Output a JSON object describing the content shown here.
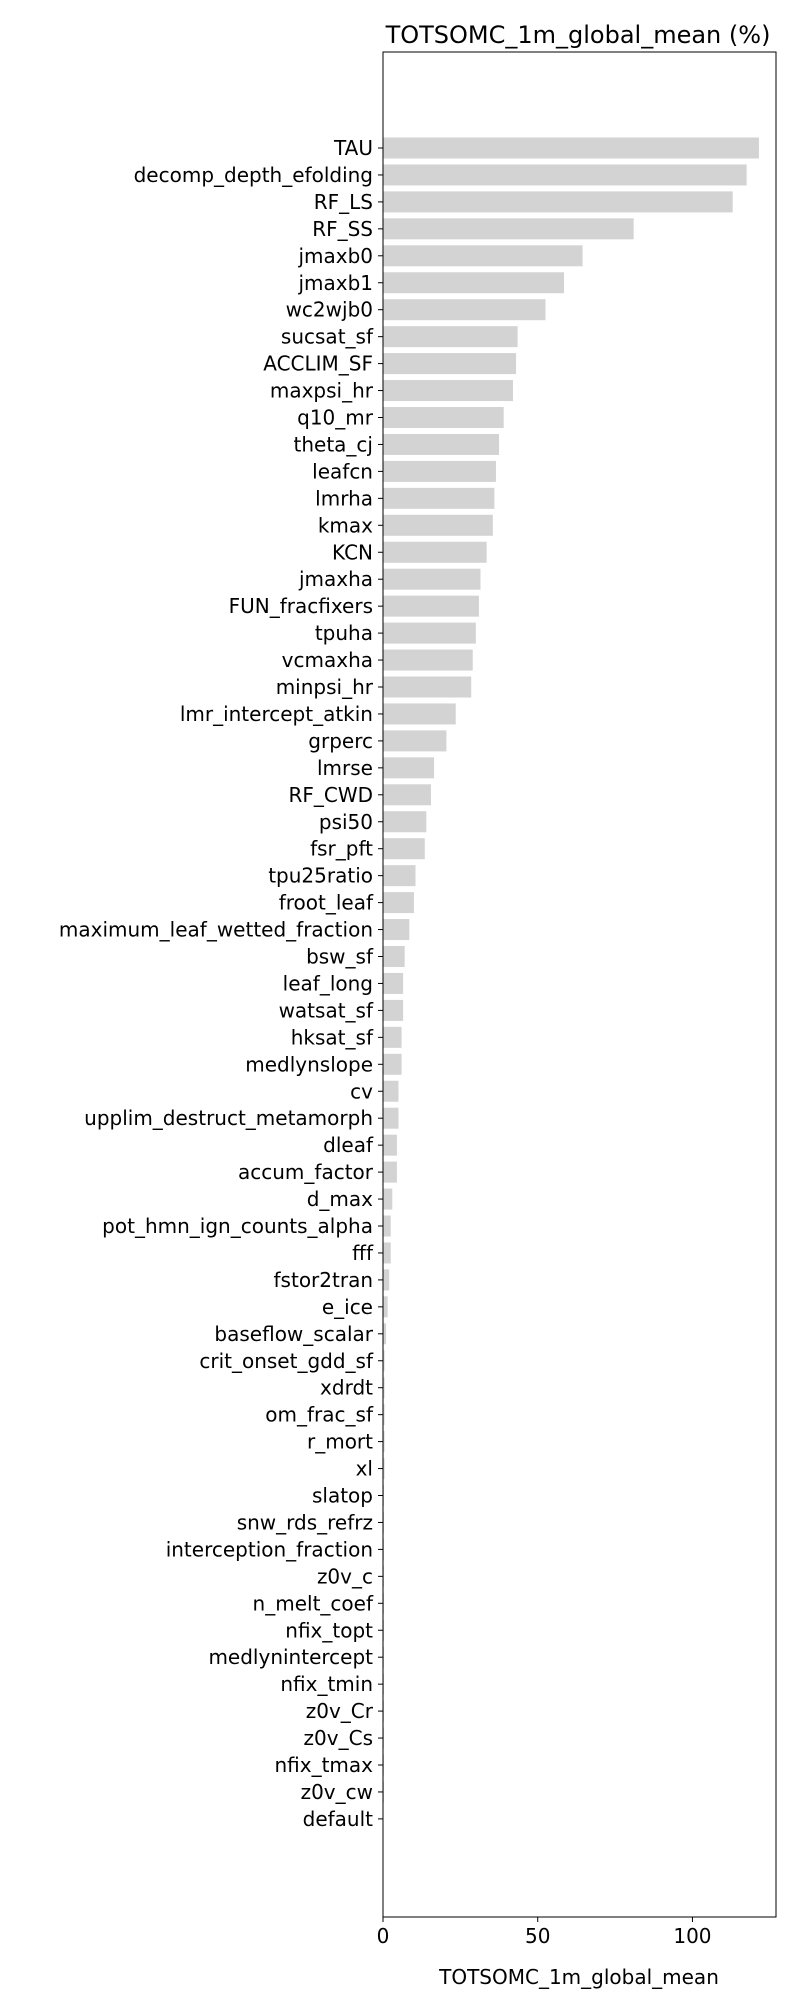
{
  "chart_data": {
    "type": "bar",
    "orientation": "horizontal",
    "title": "TOTSOMC_1m_global_mean (%)",
    "xlabel": "TOTSOMC_1m_global_mean",
    "ylabel": "",
    "xlim": [
      0,
      127
    ],
    "xticks": [
      0,
      50,
      100
    ],
    "grid": false,
    "bar_color": "#d3d3d3",
    "categories": [
      "TAU",
      "decomp_depth_efolding",
      "RF_LS",
      "RF_SS",
      "jmaxb0",
      "jmaxb1",
      "wc2wjb0",
      "sucsat_sf",
      "ACCLIM_SF",
      "maxpsi_hr",
      "q10_mr",
      "theta_cj",
      "leafcn",
      "lmrha",
      "kmax",
      "KCN",
      "jmaxha",
      "FUN_fracfixers",
      "tpuha",
      "vcmaxha",
      "minpsi_hr",
      "lmr_intercept_atkin",
      "grperc",
      "lmrse",
      "RF_CWD",
      "psi50",
      "fsr_pft",
      "tpu25ratio",
      "froot_leaf",
      "maximum_leaf_wetted_fraction",
      "bsw_sf",
      "leaf_long",
      "watsat_sf",
      "hksat_sf",
      "medlynslope",
      "cv",
      "upplim_destruct_metamorph",
      "dleaf",
      "accum_factor",
      "d_max",
      "pot_hmn_ign_counts_alpha",
      "fff",
      "fstor2tran",
      "e_ice",
      "baseflow_scalar",
      "crit_onset_gdd_sf",
      "xdrdt",
      "om_frac_sf",
      "r_mort",
      "xl",
      "slatop",
      "snw_rds_refrz",
      "interception_fraction",
      "z0v_c",
      "n_melt_coef",
      "nfix_topt",
      "medlynintercept",
      "nfix_tmin",
      "z0v_Cr",
      "z0v_Cs",
      "nfix_tmax",
      "z0v_cw",
      "default"
    ],
    "values": [
      121.5,
      117.5,
      113.0,
      81.0,
      64.5,
      58.5,
      52.5,
      43.5,
      43.0,
      42.0,
      39.0,
      37.5,
      36.5,
      36.0,
      35.5,
      33.5,
      31.5,
      31.0,
      30.0,
      29.0,
      28.5,
      23.5,
      20.5,
      16.5,
      15.5,
      14.0,
      13.5,
      10.5,
      10.0,
      8.5,
      7.0,
      6.5,
      6.5,
      6.0,
      6.0,
      5.0,
      5.0,
      4.5,
      4.5,
      3.0,
      2.5,
      2.5,
      2.0,
      1.5,
      1.0,
      0.5,
      0.5,
      0.5,
      0.5,
      0.5,
      0.3,
      0.3,
      0.3,
      0.3,
      0.3,
      0.3,
      0.3,
      0.3,
      0.3,
      0.3,
      0.3,
      0.3,
      0.0
    ]
  }
}
